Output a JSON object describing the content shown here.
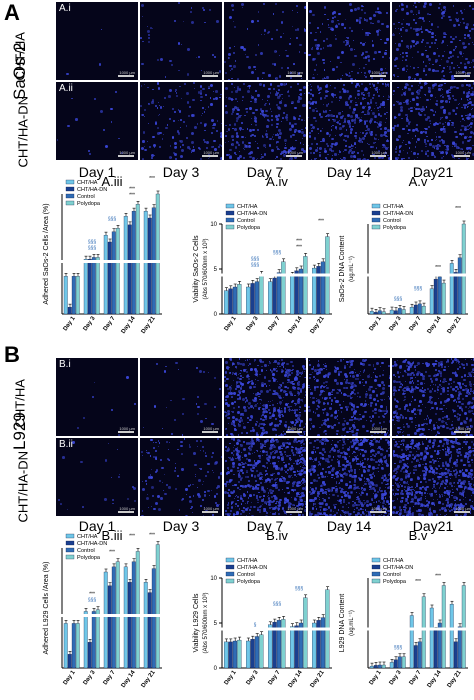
{
  "panelA": {
    "letter": "A",
    "cell_line": "SaOs-2",
    "row_i_label": "CHT/HA",
    "row_ii_label": "CHT/HA-DN",
    "row_i_tag": "A.i",
    "row_ii_tag": "A.ii",
    "scale_text": "1000 µm",
    "days": [
      "Day 1",
      "Day 3",
      "Day 7",
      "Day 14",
      "Day21"
    ]
  },
  "panelB": {
    "letter": "B",
    "cell_line": "L929",
    "row_i_label": "CHT/HA",
    "row_ii_label": "CHT/HA-DN",
    "row_i_tag": "B.i",
    "row_ii_tag": "B.ii",
    "scale_text": "1000 µm",
    "days": [
      "Day 1",
      "Day 3",
      "Day 7",
      "Day 14",
      "Day21"
    ]
  },
  "colors": {
    "cht_ha": "#6fc7e8",
    "cht_ha_dn": "#1a3f8f",
    "control": "#2f6cb5",
    "polydopa": "#7fd1d0",
    "cells": "#3a46d8",
    "sig_blue": "#2f6cb5"
  },
  "chart_data": [
    {
      "id": "A.iii",
      "title": "A.iii",
      "type": "bar",
      "ylabel": "Adhered SaOs-2 Cells /Area (%)",
      "categories": [
        "Day 1",
        "Day 3",
        "Day 7",
        "Day 14",
        "Day 21"
      ],
      "ylim": [
        0,
        7
      ],
      "series": [
        {
          "name": "CHT/HA",
          "values": [
            2.2,
            3.2,
            4.6,
            5.7,
            6.0
          ]
        },
        {
          "name": "CHT/HA-DN",
          "values": [
            0.4,
            3.2,
            4.2,
            5.2,
            5.6
          ]
        },
        {
          "name": "Control",
          "values": [
            2.2,
            3.3,
            4.8,
            6.0,
            6.2
          ]
        },
        {
          "name": "Polydopa",
          "values": [
            2.2,
            3.3,
            5.0,
            6.4,
            7.0
          ]
        }
      ],
      "annotations": [
        "§§§",
        "§§§",
        "§§§",
        "***",
        "***",
        "***"
      ]
    },
    {
      "id": "A.iv",
      "title": "A.iv",
      "type": "bar",
      "ylabel": "Viability SaOs-2 Cells",
      "ylabel2": "(Abs 570/600nm x 10³)",
      "categories": [
        "Day 1",
        "Day 3",
        "Day 7",
        "Day 14",
        "Day 21"
      ],
      "ylim": [
        0,
        10
      ],
      "yticks": [
        0,
        5,
        10
      ],
      "series": [
        {
          "name": "CHT/HA",
          "values": [
            2.6,
            3.0,
            3.6,
            4.3,
            5.1
          ]
        },
        {
          "name": "CHT/HA-DN",
          "values": [
            2.8,
            3.4,
            4.0,
            4.8,
            5.3
          ]
        },
        {
          "name": "Control",
          "values": [
            3.0,
            3.6,
            4.6,
            5.0,
            5.8
          ]
        },
        {
          "name": "Polydopa",
          "values": [
            3.3,
            4.4,
            5.8,
            6.4,
            8.6
          ]
        }
      ],
      "annotations": [
        "§§§",
        "§§§",
        "§§§",
        "***",
        "***",
        "***"
      ]
    },
    {
      "id": "A.v",
      "title": "A.v",
      "type": "bar",
      "ylabel": "SaOs-2 DNA Content",
      "ylabel2": "(ug.mL⁻¹)",
      "categories": [
        "Day 1",
        "Day 3",
        "Day 7",
        "Day 14",
        "Day 21"
      ],
      "ylim": [
        0,
        1.6
      ],
      "series": [
        {
          "name": "CHT/HA",
          "values": [
            0.05,
            0.07,
            0.12,
            0.45,
            0.9
          ]
        },
        {
          "name": "CHT/HA-DN",
          "values": [
            0.03,
            0.06,
            0.16,
            0.62,
            0.74
          ]
        },
        {
          "name": "Control",
          "values": [
            0.06,
            0.1,
            0.18,
            0.66,
            1.0
          ]
        },
        {
          "name": "Polydopa",
          "values": [
            0.04,
            0.08,
            0.14,
            0.55,
            1.6
          ]
        }
      ],
      "annotations": [
        "§§§",
        "§§§",
        "***",
        "***"
      ]
    },
    {
      "id": "B.iii",
      "title": "B.iii",
      "type": "bar",
      "ylabel": "Adhered L929 Cells /Area (%)",
      "categories": [
        "Day 1",
        "Day 3",
        "Day 7",
        "Day 14",
        "Day 21"
      ],
      "ylim": [
        0,
        7
      ],
      "series": [
        {
          "name": "CHT/HA",
          "values": [
            2.6,
            3.3,
            5.6,
            5.9,
            5.0
          ]
        },
        {
          "name": "CHT/HA-DN",
          "values": [
            0.8,
            1.5,
            4.8,
            5.0,
            4.4
          ]
        },
        {
          "name": "Control",
          "values": [
            2.6,
            3.3,
            5.9,
            6.2,
            5.8
          ]
        },
        {
          "name": "Polydopa",
          "values": [
            2.6,
            3.4,
            6.2,
            6.8,
            7.2
          ]
        }
      ],
      "annotations": [
        "§§§",
        "***",
        "***",
        "***",
        "***"
      ]
    },
    {
      "id": "B.iv",
      "title": "B.iv",
      "type": "bar",
      "ylabel": "Viability L929 Cells",
      "ylabel2": "(Abs 570/600nm x 10³)",
      "categories": [
        "Day 1",
        "Day 3",
        "Day 7",
        "Day 14",
        "Day 21"
      ],
      "ylim": [
        0,
        10
      ],
      "yticks": [
        0,
        5,
        10
      ],
      "series": [
        {
          "name": "CHT/HA",
          "values": [
            2.9,
            3.0,
            4.8,
            4.6,
            5.0
          ]
        },
        {
          "name": "CHT/HA-DN",
          "values": [
            2.9,
            3.2,
            5.1,
            4.7,
            5.3
          ]
        },
        {
          "name": "Control",
          "values": [
            3.0,
            3.5,
            5.3,
            5.0,
            5.6
          ]
        },
        {
          "name": "Polydopa",
          "values": [
            3.1,
            3.7,
            5.4,
            7.8,
            8.7
          ]
        }
      ],
      "annotations": [
        "§",
        "§§§",
        "§§§"
      ]
    },
    {
      "id": "B.v",
      "title": "B.v",
      "type": "bar",
      "ylabel": "L929 DNA Content",
      "ylabel2": "(ug.mL⁻¹)",
      "categories": [
        "Day 1",
        "Day 3",
        "Day 7",
        "Day 14",
        "Day 21"
      ],
      "ylim": [
        0,
        2.4
      ],
      "series": [
        {
          "name": "CHT/HA",
          "values": [
            0.05,
            0.15,
            1.4,
            1.6,
            1.7
          ]
        },
        {
          "name": "CHT/HA-DN",
          "values": [
            0.07,
            0.22,
            0.6,
            1.0,
            0.7
          ]
        },
        {
          "name": "Control",
          "values": [
            0.08,
            0.3,
            0.7,
            1.2,
            1.1
          ]
        },
        {
          "name": "Polydopa",
          "values": [
            0.08,
            0.3,
            1.9,
            2.2,
            2.2
          ]
        }
      ],
      "annotations": [
        "§§§",
        "***",
        "***"
      ]
    }
  ]
}
